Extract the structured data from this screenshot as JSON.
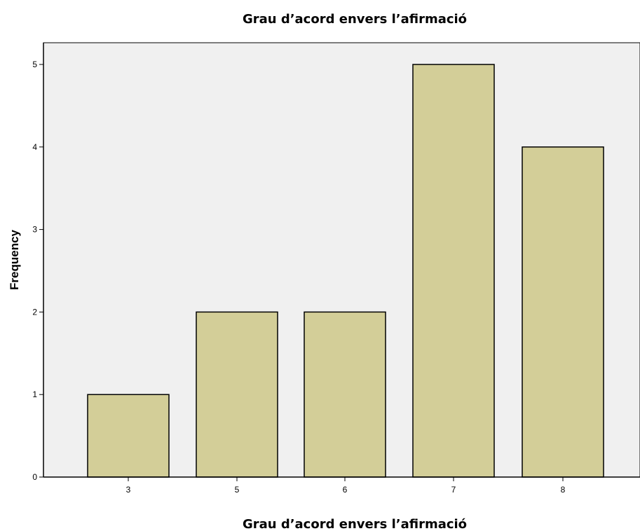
{
  "chart_data": {
    "type": "bar",
    "title": "Grau d’acord envers l’afirmació",
    "xlabel": "Grau d’acord envers l’afirmació",
    "ylabel": "Frequency",
    "categories": [
      "3",
      "5",
      "6",
      "7",
      "8"
    ],
    "values": [
      1,
      2,
      2,
      5,
      4
    ],
    "ylim": [
      0,
      5.5
    ],
    "yticks": [
      "0",
      "1",
      "2",
      "3",
      "4",
      "5"
    ],
    "grid": false,
    "legend": "none",
    "colors": {
      "bar_fill": "#d3ce98",
      "bar_stroke": "#000000",
      "plot_background": "#f0f0f0",
      "axis": "#000000"
    }
  }
}
